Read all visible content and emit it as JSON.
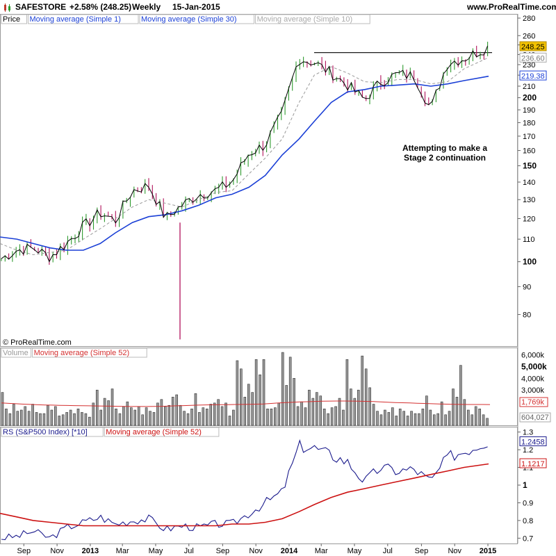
{
  "header": {
    "symbol": "SAFESTORE",
    "change": "+2.58% (248.25)",
    "period": "Weekly",
    "date": "15-Jan-2015",
    "site": "www.ProRealTime.com"
  },
  "copyright": "© ProRealTime.com",
  "annotation": {
    "line1": "Attempting to make a",
    "line2": "Stage 2 continuation"
  },
  "colors": {
    "up": "#2e9a2e",
    "down": "#b0105a",
    "ma1": "#000000",
    "ma30": "#1a3fd6",
    "ma10": "#999999",
    "volume": "#888888",
    "vol_ma": "#d43030",
    "rs": "#1a1a8c",
    "rs_ma": "#cc1111",
    "label_gold": "#f2c200"
  },
  "chart_data": [
    {
      "type": "line",
      "panel": "price",
      "legend": [
        "Price",
        "Moving average (Simple 1)",
        "Moving average (Simple 30)",
        "Moving average (Simple 10)"
      ],
      "y_ticks": [
        "280",
        "260",
        "250",
        "240",
        "230",
        "220",
        "210",
        "200",
        "190",
        "180",
        "170",
        "160",
        "150",
        "140",
        "130",
        "120",
        "110",
        "100",
        "90",
        "80"
      ],
      "y_scale": "log",
      "ylim": [
        70,
        285
      ],
      "value_labels": [
        "248.25",
        "236.60",
        "219.38"
      ],
      "resistance_level": 242,
      "x_ticks": [
        "Sep",
        "Nov",
        "2013",
        "Mar",
        "May",
        "Jul",
        "Sep",
        "Nov",
        "2014",
        "Mar",
        "May",
        "Jul",
        "Sep",
        "Nov",
        "2015"
      ],
      "x_start": "2012-08-01",
      "x_end": "2015-01-15",
      "series": [
        {
          "name": "Moving average (Simple 1)",
          "x": [
            "2012-08-01",
            "2012-09-01",
            "2012-10-01",
            "2012-11-01",
            "2012-12-01",
            "2013-01-01",
            "2013-02-01",
            "2013-03-01",
            "2013-04-01",
            "2013-05-01",
            "2013-06-01",
            "2013-07-01",
            "2013-08-01",
            "2013-09-01",
            "2013-10-01",
            "2013-11-01",
            "2013-12-01",
            "2014-01-01",
            "2014-02-01",
            "2014-03-01",
            "2014-04-01",
            "2014-05-01",
            "2014-06-01",
            "2014-07-01",
            "2014-08-01",
            "2014-09-01",
            "2014-10-01",
            "2014-11-01",
            "2014-12-01",
            "2015-01-15"
          ],
          "values": [
            101,
            105,
            106,
            102,
            108,
            116,
            123,
            119,
            135,
            138,
            120,
            127,
            133,
            135,
            140,
            158,
            164,
            186,
            236,
            232,
            222,
            211,
            198,
            214,
            221,
            219,
            190,
            232,
            236,
            248
          ]
        },
        {
          "name": "Moving average (Simple 30)",
          "x": [
            "2012-08-01",
            "2012-09-01",
            "2012-10-01",
            "2012-11-01",
            "2012-12-01",
            "2013-01-01",
            "2013-02-01",
            "2013-03-01",
            "2013-04-01",
            "2013-05-01",
            "2013-06-01",
            "2013-07-01",
            "2013-08-01",
            "2013-09-01",
            "2013-10-01",
            "2013-11-01",
            "2013-12-01",
            "2014-01-01",
            "2014-02-01",
            "2014-03-01",
            "2014-04-01",
            "2014-05-01",
            "2014-06-01",
            "2014-07-01",
            "2014-08-01",
            "2014-09-01",
            "2014-10-01",
            "2014-11-01",
            "2014-12-01",
            "2015-01-15"
          ],
          "values": [
            111,
            110,
            108,
            106,
            105,
            105,
            108,
            113,
            118,
            121,
            122,
            124,
            127,
            131,
            133,
            137,
            144,
            157,
            168,
            181,
            196,
            205,
            207,
            210,
            211,
            212,
            210,
            212,
            215,
            219
          ]
        },
        {
          "name": "Moving average (Simple 10)",
          "x": [
            "2012-08-01",
            "2012-09-01",
            "2012-10-01",
            "2012-11-01",
            "2012-12-01",
            "2013-01-01",
            "2013-02-01",
            "2013-03-01",
            "2013-04-01",
            "2013-05-01",
            "2013-06-01",
            "2013-07-01",
            "2013-08-01",
            "2013-09-01",
            "2013-10-01",
            "2013-11-01",
            "2013-12-01",
            "2014-01-01",
            "2014-02-01",
            "2014-03-01",
            "2014-04-01",
            "2014-05-01",
            "2014-06-01",
            "2014-07-01",
            "2014-08-01",
            "2014-09-01",
            "2014-10-01",
            "2014-11-01",
            "2014-12-01",
            "2015-01-15"
          ],
          "values": [
            108,
            105,
            103,
            104,
            105,
            110,
            115,
            120,
            126,
            130,
            128,
            126,
            130,
            134,
            135,
            145,
            155,
            168,
            196,
            220,
            228,
            222,
            214,
            213,
            216,
            216,
            212,
            214,
            226,
            237
          ]
        }
      ]
    },
    {
      "type": "bar",
      "panel": "volume",
      "legend": [
        "Volume",
        "Moving average (Simple 52)"
      ],
      "y_ticks": [
        "6,000k",
        "5,000k",
        "4,000k",
        "3,000k",
        "2,000k"
      ],
      "ylim": [
        0,
        6500
      ],
      "value_labels": [
        "1,769k",
        "604,027"
      ],
      "series": [
        {
          "name": "Volume",
          "values": [
            2800,
            1400,
            1000,
            1800,
            1200,
            1300,
            1600,
            1200,
            1800,
            1100,
            1000,
            1000,
            1700,
            1300,
            1600,
            800,
            900,
            1100,
            1300,
            1000,
            1400,
            1100,
            1000,
            700,
            1900,
            3000,
            1300,
            2300,
            2100,
            3100,
            1400,
            1000,
            1600,
            2000,
            1500,
            1300,
            1600,
            900,
            1500,
            1200,
            1100,
            1900,
            2200,
            1600,
            1700,
            2400,
            2600,
            1700,
            1200,
            1000,
            1400,
            2700,
            1100,
            1500,
            1400,
            1800,
            1900,
            2200,
            1600,
            1900,
            800,
            1300,
            5500,
            4800,
            2400,
            3500,
            2800,
            5600,
            4300,
            5600,
            1400,
            1400,
            1500,
            1900,
            6200,
            3400,
            5800,
            4000,
            1600,
            2000,
            1500,
            3000,
            2300,
            2800,
            2500,
            1400,
            1000,
            1500,
            1600,
            2300,
            1300,
            5600,
            3100,
            2300,
            3000,
            5900,
            4800,
            3200,
            1800,
            1200,
            900,
            1300,
            1100,
            1500,
            800,
            1400,
            1200,
            800,
            1200,
            1000,
            1000,
            1400,
            2500,
            1300,
            900,
            1000,
            2000,
            900,
            1200,
            3100,
            2400,
            5100,
            2200,
            1300,
            900,
            1600,
            1400,
            900,
            600
          ]
        },
        {
          "name": "Moving average (Simple 52)",
          "values": [
            1900,
            1870,
            1840,
            1800,
            1780,
            1750,
            1730,
            1720,
            1700,
            1690,
            1680,
            1670,
            1660,
            1650,
            1640,
            1630,
            1620,
            1610,
            1600,
            1600,
            1600,
            1610,
            1620,
            1640,
            1660,
            1680,
            1700,
            1720,
            1740,
            1750,
            1760,
            1760,
            1770,
            1780,
            1790,
            1800,
            1820,
            1860,
            1900,
            1930,
            1960,
            1990,
            2010,
            2030,
            2050,
            2060,
            2070,
            2070,
            2060,
            2050,
            2040,
            2020,
            1990,
            1960,
            1940,
            1920,
            1900,
            1880,
            1860,
            1840,
            1820,
            1800,
            1790,
            1780,
            1775,
            1772,
            1770,
            1769
          ]
        }
      ]
    },
    {
      "type": "line",
      "panel": "rs",
      "legend": [
        "RS (S&P500 Index) [*10]",
        "Moving average (Simple 52)"
      ],
      "y_ticks": [
        "1.3",
        "1.2",
        "1.1",
        "1",
        "0.9",
        "0.8",
        "0.7"
      ],
      "ylim": [
        0.67,
        1.33
      ],
      "value_labels": [
        "1.2458",
        "1.1217"
      ],
      "series": [
        {
          "name": "RS (S&P500 Index) [*10]",
          "x": [
            "2012-08-01",
            "2012-09-01",
            "2012-10-01",
            "2012-11-01",
            "2012-12-01",
            "2013-01-01",
            "2013-02-01",
            "2013-03-01",
            "2013-04-01",
            "2013-05-01",
            "2013-06-01",
            "2013-07-01",
            "2013-08-01",
            "2013-09-01",
            "2013-10-01",
            "2013-11-01",
            "2013-12-01",
            "2014-01-01",
            "2014-02-01",
            "2014-03-01",
            "2014-04-01",
            "2014-05-01",
            "2014-06-01",
            "2014-07-01",
            "2014-08-01",
            "2014-09-01",
            "2014-10-01",
            "2014-11-01",
            "2014-12-01",
            "2015-01-15"
          ],
          "values": [
            0.7,
            0.71,
            0.74,
            0.7,
            0.76,
            0.79,
            0.82,
            0.78,
            0.8,
            0.81,
            0.75,
            0.77,
            0.76,
            0.78,
            0.78,
            0.84,
            0.9,
            0.96,
            1.22,
            1.21,
            1.17,
            1.13,
            1.02,
            1.1,
            1.08,
            1.09,
            1.02,
            1.16,
            1.19,
            1.25
          ]
        },
        {
          "name": "Moving average (Simple 52)",
          "x": [
            "2012-08-01",
            "2012-09-01",
            "2012-10-01",
            "2012-11-01",
            "2012-12-01",
            "2013-01-01",
            "2013-02-01",
            "2013-03-01",
            "2013-04-01",
            "2013-05-01",
            "2013-06-01",
            "2013-07-01",
            "2013-08-01",
            "2013-09-01",
            "2013-10-01",
            "2013-11-01",
            "2013-12-01",
            "2014-01-01",
            "2014-02-01",
            "2014-03-01",
            "2014-04-01",
            "2014-05-01",
            "2014-06-01",
            "2014-07-01",
            "2014-08-01",
            "2014-09-01",
            "2014-10-01",
            "2014-11-01",
            "2014-12-01",
            "2015-01-15"
          ],
          "values": [
            0.84,
            0.82,
            0.8,
            0.79,
            0.78,
            0.77,
            0.77,
            0.77,
            0.77,
            0.77,
            0.77,
            0.77,
            0.77,
            0.77,
            0.78,
            0.78,
            0.79,
            0.81,
            0.85,
            0.89,
            0.93,
            0.96,
            0.98,
            1.0,
            1.02,
            1.04,
            1.06,
            1.08,
            1.1,
            1.12
          ]
        }
      ]
    }
  ]
}
